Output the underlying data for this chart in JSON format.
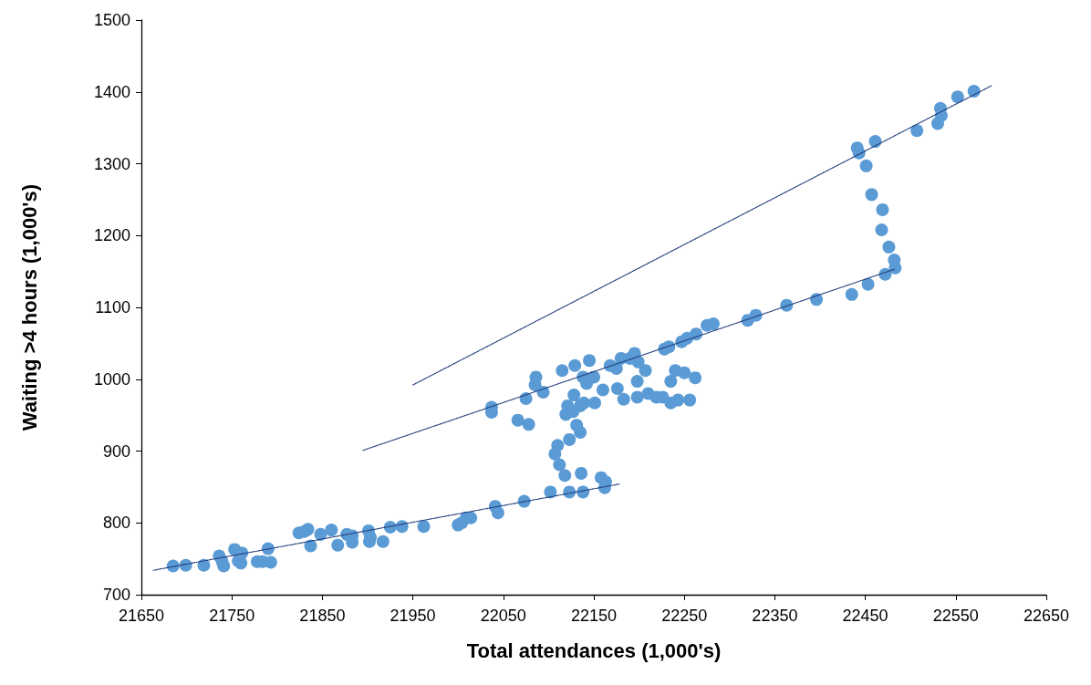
{
  "chart_data": {
    "type": "scatter",
    "xlabel": "Total attendances (1,000's)",
    "ylabel": "Waiting >4 hours (1,000's)",
    "xlim": [
      21650,
      22650
    ],
    "xticks": [
      21650,
      21750,
      21850,
      21950,
      22050,
      22150,
      22250,
      22350,
      22450,
      22550,
      22650
    ],
    "ylim": [
      700,
      1500
    ],
    "yticks": [
      700,
      800,
      900,
      1000,
      1100,
      1200,
      1300,
      1400,
      1500
    ],
    "grid": false,
    "series": [
      {
        "color": "#5b9bd5",
        "marker": "circle",
        "x": [
          21685,
          21699,
          21719,
          21736,
          21739,
          21741,
          21753,
          21757,
          21761,
          21760,
          21778,
          21784,
          21790,
          21793,
          21824,
          21830,
          21834,
          21837,
          21848,
          21860,
          21867,
          21877,
          21883,
          21883,
          21901,
          21902,
          21903,
          21917,
          21925,
          21938,
          21962,
          22000,
          22004,
          22009,
          22014,
          22041,
          22044,
          22073,
          22102,
          22123,
          22138,
          22158,
          22162,
          22163,
          22136,
          22118,
          22112,
          22107,
          22110,
          22123,
          22135,
          22131,
          22119,
          22127,
          22135,
          22121,
          22128,
          22139,
          22151,
          22037,
          22037,
          22066,
          22078,
          22075,
          22085,
          22086,
          22094,
          22115,
          22129,
          22145,
          22138,
          22142,
          22150,
          22160,
          22168,
          22175,
          22180,
          22190,
          22195,
          22199,
          22207,
          22198,
          22176,
          22183,
          22198,
          22210,
          22219,
          22226,
          22235,
          22243,
          22256,
          22235,
          22240,
          22250,
          22262,
          22228,
          22233,
          22247,
          22253,
          22263,
          22275,
          22282,
          22320,
          22329,
          22363,
          22396,
          22435,
          22453,
          22472,
          22483,
          22482,
          22476,
          22468,
          22469,
          22457,
          22451,
          22443,
          22441,
          22461,
          22507,
          22530,
          22534,
          22533,
          22552,
          22570
        ],
        "values": [
          740,
          741,
          741,
          754,
          747,
          740,
          763,
          747,
          758,
          744,
          746,
          746,
          764,
          745,
          786,
          788,
          791,
          768,
          784,
          790,
          769,
          784,
          773,
          782,
          789,
          774,
          780,
          774,
          794,
          795,
          795,
          797,
          800,
          807,
          807,
          823,
          814,
          830,
          843,
          843,
          843,
          863,
          849,
          857,
          869,
          866,
          881,
          896,
          908,
          916,
          926,
          936,
          951,
          955,
          963,
          963,
          978,
          967,
          967,
          961,
          954,
          943,
          937,
          973,
          992,
          1003,
          982,
          1012,
          1019,
          1026,
          1003,
          994,
          1003,
          985,
          1019,
          1015,
          1029,
          1029,
          1036,
          1024,
          1012,
          997,
          987,
          972,
          975,
          980,
          975,
          975,
          967,
          971,
          971,
          997,
          1012,
          1009,
          1002,
          1042,
          1045,
          1052,
          1057,
          1063,
          1075,
          1077,
          1082,
          1089,
          1103,
          1111,
          1118,
          1132,
          1146,
          1155,
          1166,
          1184,
          1208,
          1236,
          1257,
          1297,
          1315,
          1322,
          1331,
          1346,
          1356,
          1367,
          1377,
          1393,
          1401
        ]
      },
      {
        "type": "line",
        "color": "#1f3b7a",
        "marker": "none",
        "line_style": "dotted",
        "x": [
          21663,
          22178
        ],
        "values": [
          734,
          854
        ]
      },
      {
        "type": "line",
        "color": "#1f3b7a",
        "marker": "none",
        "line_style": "dotted",
        "x": [
          21895,
          22482
        ],
        "values": [
          901,
          1153
        ]
      },
      {
        "type": "line",
        "color": "#1f3b7a",
        "marker": "none",
        "line_style": "dotted",
        "x": [
          21950,
          22590
        ],
        "values": [
          992,
          1409
        ]
      }
    ]
  }
}
